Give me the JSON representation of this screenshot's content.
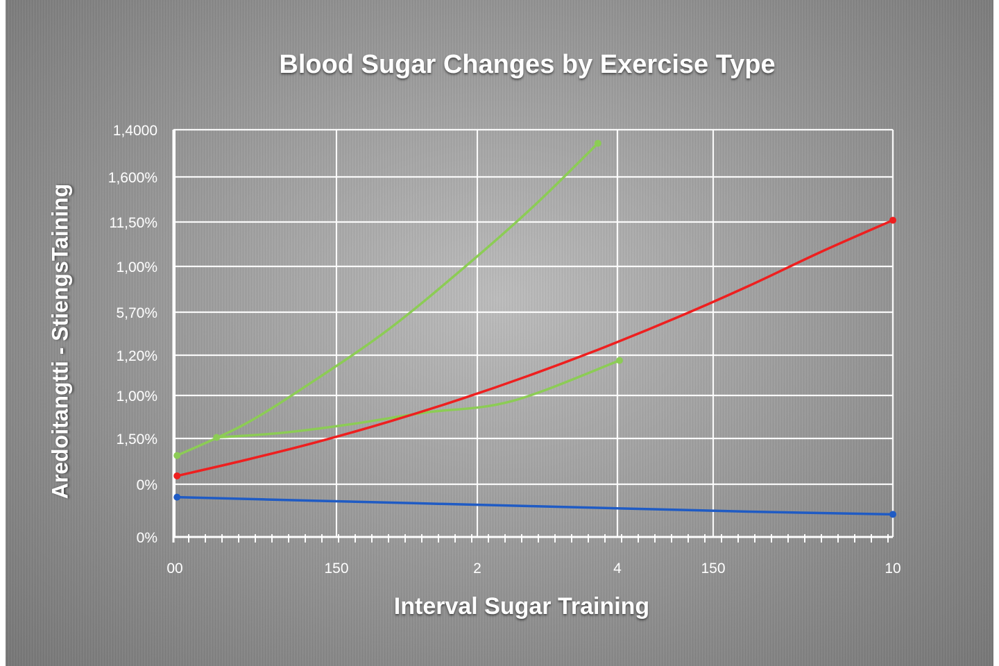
{
  "chart_data": {
    "type": "line",
    "title": "Blood Sugar Changes by Exercise Type",
    "xlabel": "Interval Sugar Training",
    "ylabel": "Aredoitangtti - StiengsTaining",
    "x_tick_labels": [
      "00",
      "150",
      "2",
      "4",
      "150",
      "10"
    ],
    "y_tick_labels": [
      "0%",
      "0%",
      "1,50%",
      "1,00%",
      "1,20%",
      "5,70%",
      "1,00%",
      "11,50%",
      "1,600%",
      "1,4000"
    ],
    "grid": true,
    "legend": "none",
    "xlim": [
      0,
      10
    ],
    "ylim": [
      0,
      9
    ],
    "series": [
      {
        "color": "#8ccc55",
        "x": [
          0.05,
          1.0,
          2.0,
          3.0,
          4.0,
          5.0,
          5.9
        ],
        "y": [
          1.8,
          2.5,
          3.5,
          4.6,
          5.9,
          7.3,
          8.7
        ]
      },
      {
        "color": "#8ccc55",
        "x": [
          0.6,
          1.5,
          2.5,
          3.5,
          4.7,
          6.2
        ],
        "y": [
          2.2,
          2.3,
          2.5,
          2.75,
          3.0,
          3.9
        ]
      },
      {
        "color": "#ee1f1f",
        "x": [
          0.05,
          1.0,
          2.0,
          3.0,
          4.0,
          5.0,
          6.0,
          7.0,
          8.0,
          9.0,
          10.0
        ],
        "y": [
          1.35,
          1.7,
          2.1,
          2.55,
          3.05,
          3.6,
          4.2,
          4.85,
          5.55,
          6.3,
          7.0
        ]
      },
      {
        "color": "#1f5bc4",
        "x": [
          0.05,
          2.0,
          4.0,
          6.0,
          8.0,
          10.0
        ],
        "y": [
          0.88,
          0.8,
          0.72,
          0.64,
          0.56,
          0.5
        ]
      }
    ]
  }
}
